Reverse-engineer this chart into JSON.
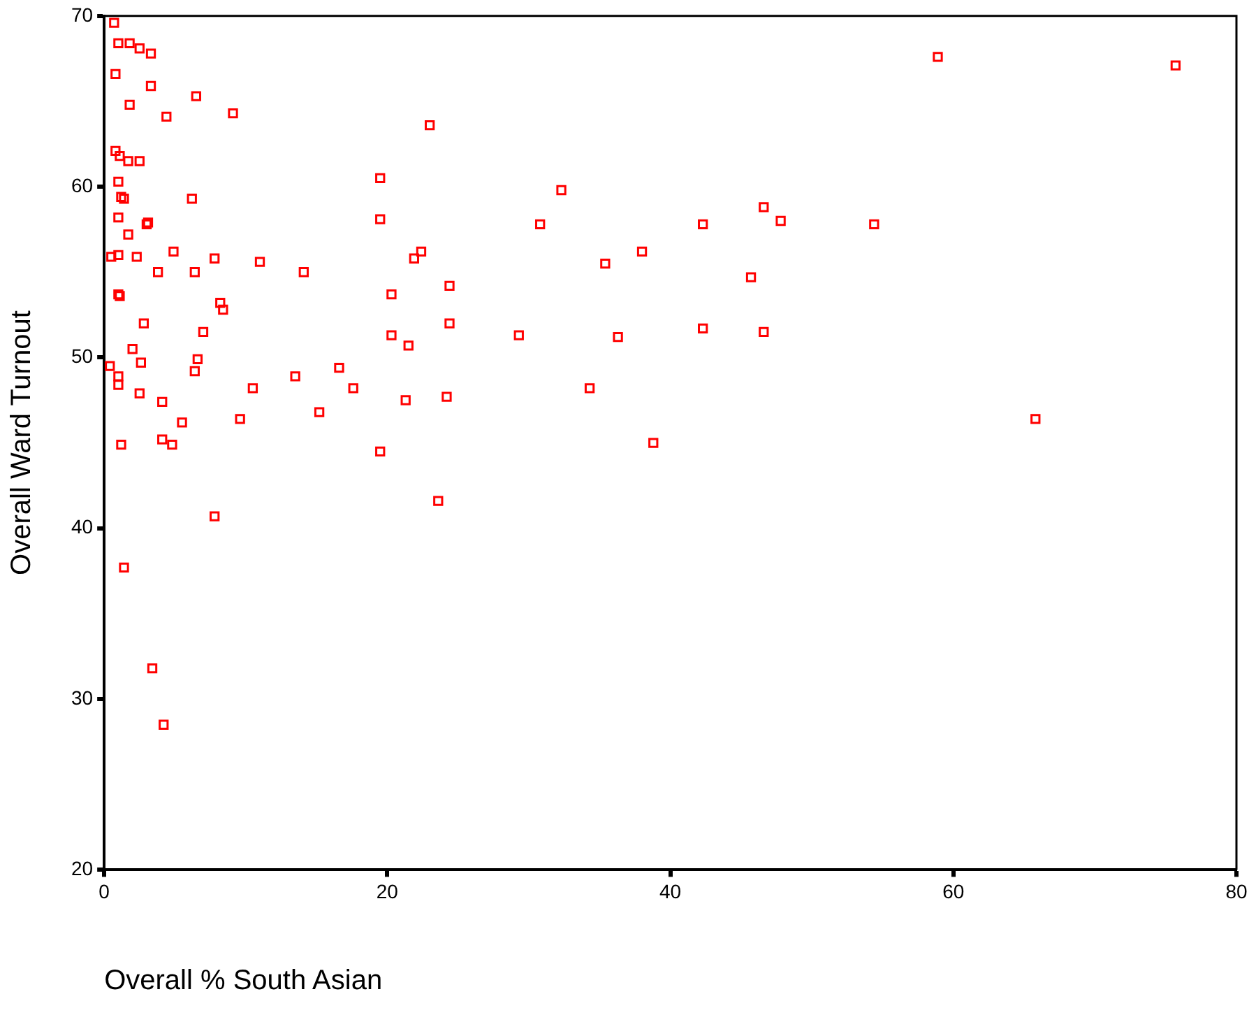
{
  "chart_data": {
    "type": "scatter",
    "xlabel": "Overall % South Asian",
    "ylabel": "Overall Ward Turnout",
    "xlim": [
      0,
      80
    ],
    "ylim": [
      20,
      70
    ],
    "xticks": [
      0,
      20,
      40,
      60,
      80
    ],
    "yticks": [
      20,
      30,
      40,
      50,
      60,
      70
    ],
    "grid": false,
    "legend": false,
    "marker": "square",
    "series": [
      {
        "color": "#ff0000",
        "x": [
          0.7,
          1.0,
          1.8,
          2.5,
          3.3,
          0.8,
          3.3,
          6.5,
          9.1,
          1.8,
          4.4,
          0.8,
          1.1,
          1.7,
          2.5,
          1.0,
          1.2,
          1.4,
          6.2,
          1.0,
          3.0,
          3.1,
          1.7,
          0.5,
          1.0,
          2.3,
          4.9,
          7.8,
          11.0,
          14.1,
          3.8,
          6.4,
          1.0,
          1.1,
          8.2,
          8.4,
          2.8,
          7.0,
          2.0,
          2.6,
          6.6,
          6.4,
          0.4,
          1.0,
          1.0,
          2.5,
          4.1,
          10.5,
          13.5,
          16.6,
          17.6,
          9.6,
          5.5,
          15.2,
          4.1,
          4.8,
          1.2,
          7.8,
          1.4,
          3.4,
          4.2,
          19.5,
          19.5,
          23.0,
          32.3,
          30.8,
          22.4,
          21.9,
          35.4,
          38.0,
          42.3,
          46.6,
          47.8,
          54.4,
          45.7,
          24.4,
          20.3,
          24.4,
          20.3,
          21.5,
          29.3,
          36.3,
          42.3,
          46.6,
          34.3,
          21.3,
          24.2,
          38.8,
          19.5,
          23.6,
          65.8,
          58.9,
          75.7
        ],
        "values": [
          69.6,
          68.4,
          68.4,
          68.1,
          67.8,
          66.6,
          65.9,
          65.3,
          64.3,
          64.8,
          64.1,
          62.1,
          61.8,
          61.5,
          61.5,
          60.3,
          59.4,
          59.3,
          59.3,
          58.2,
          57.8,
          57.9,
          57.2,
          55.9,
          56.0,
          55.9,
          56.2,
          55.8,
          55.6,
          55.0,
          55.0,
          55.0,
          53.7,
          53.6,
          53.2,
          52.8,
          52.0,
          51.5,
          50.5,
          49.7,
          49.9,
          49.2,
          49.5,
          48.9,
          48.4,
          47.9,
          47.4,
          48.2,
          48.9,
          49.4,
          48.2,
          46.4,
          46.2,
          46.8,
          45.2,
          44.9,
          44.9,
          40.7,
          37.7,
          31.8,
          28.5,
          60.5,
          58.1,
          63.6,
          59.8,
          57.8,
          56.2,
          55.8,
          55.5,
          56.2,
          57.8,
          58.8,
          58.0,
          57.8,
          54.7,
          54.2,
          53.7,
          52.0,
          51.3,
          50.7,
          51.3,
          51.2,
          51.7,
          51.5,
          48.2,
          47.5,
          47.7,
          45.0,
          44.5,
          41.6,
          46.4,
          67.6,
          67.1
        ]
      }
    ]
  }
}
